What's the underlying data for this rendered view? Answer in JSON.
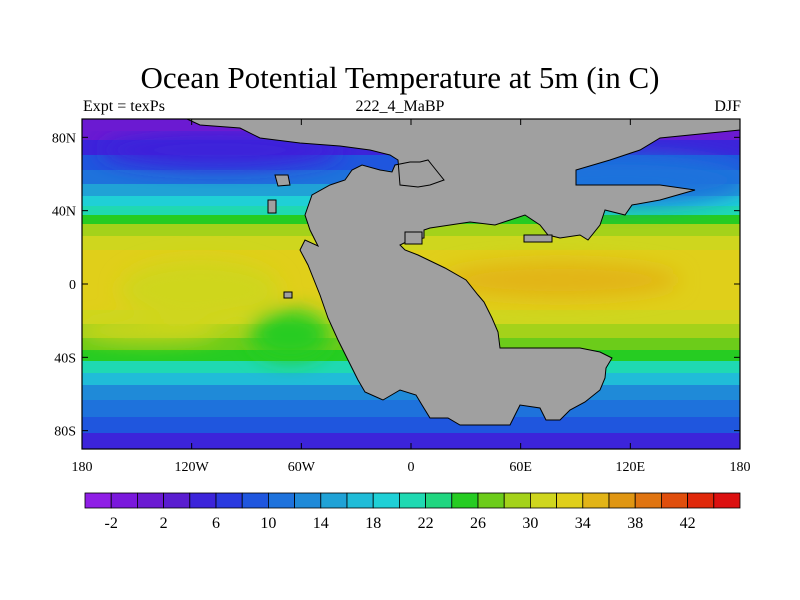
{
  "title": "Ocean Potential Temperature at 5m (in C)",
  "subtitle_left": "Expt = texPs",
  "subtitle_center": "222_4_MaBP",
  "subtitle_right": "DJF",
  "map": {
    "lon_range": [
      -180,
      180
    ],
    "lat_range": [
      -90,
      90
    ],
    "lat_tick_labels": [
      {
        "lat": 80,
        "label": "80N"
      },
      {
        "lat": 40,
        "label": "40N"
      },
      {
        "lat": 0,
        "label": "0"
      },
      {
        "lat": -40,
        "label": "40S"
      },
      {
        "lat": -80,
        "label": "80S"
      }
    ],
    "lon_tick_labels": [
      {
        "lon": -180,
        "label": "180"
      },
      {
        "lon": -120,
        "label": "120W"
      },
      {
        "lon": -60,
        "label": "60W"
      },
      {
        "lon": 0,
        "label": "0"
      },
      {
        "lon": 60,
        "label": "60E"
      },
      {
        "lon": 120,
        "label": "120E"
      },
      {
        "lon": 180,
        "label": "180"
      }
    ],
    "land_color": "#a0a0a0"
  },
  "colorbar": {
    "colors": [
      "#8f1ee6",
      "#7a18dc",
      "#6b1ad2",
      "#5a1dd0",
      "#3c24da",
      "#2a3ae0",
      "#1f56de",
      "#1e72dc",
      "#1f8ad8",
      "#20a2d6",
      "#20bcd8",
      "#1fd0d6",
      "#1fd9b2",
      "#20d680",
      "#26cc22",
      "#6ccc1a",
      "#a4d21a",
      "#cfd61e",
      "#e0cf1a",
      "#e2b417",
      "#e09612",
      "#e07410",
      "#e04e0c",
      "#e0280a",
      "#dc1010"
    ],
    "labels": [
      "-2",
      "2",
      "6",
      "10",
      "14",
      "18",
      "22",
      "26",
      "30",
      "34",
      "38",
      "42"
    ]
  }
}
